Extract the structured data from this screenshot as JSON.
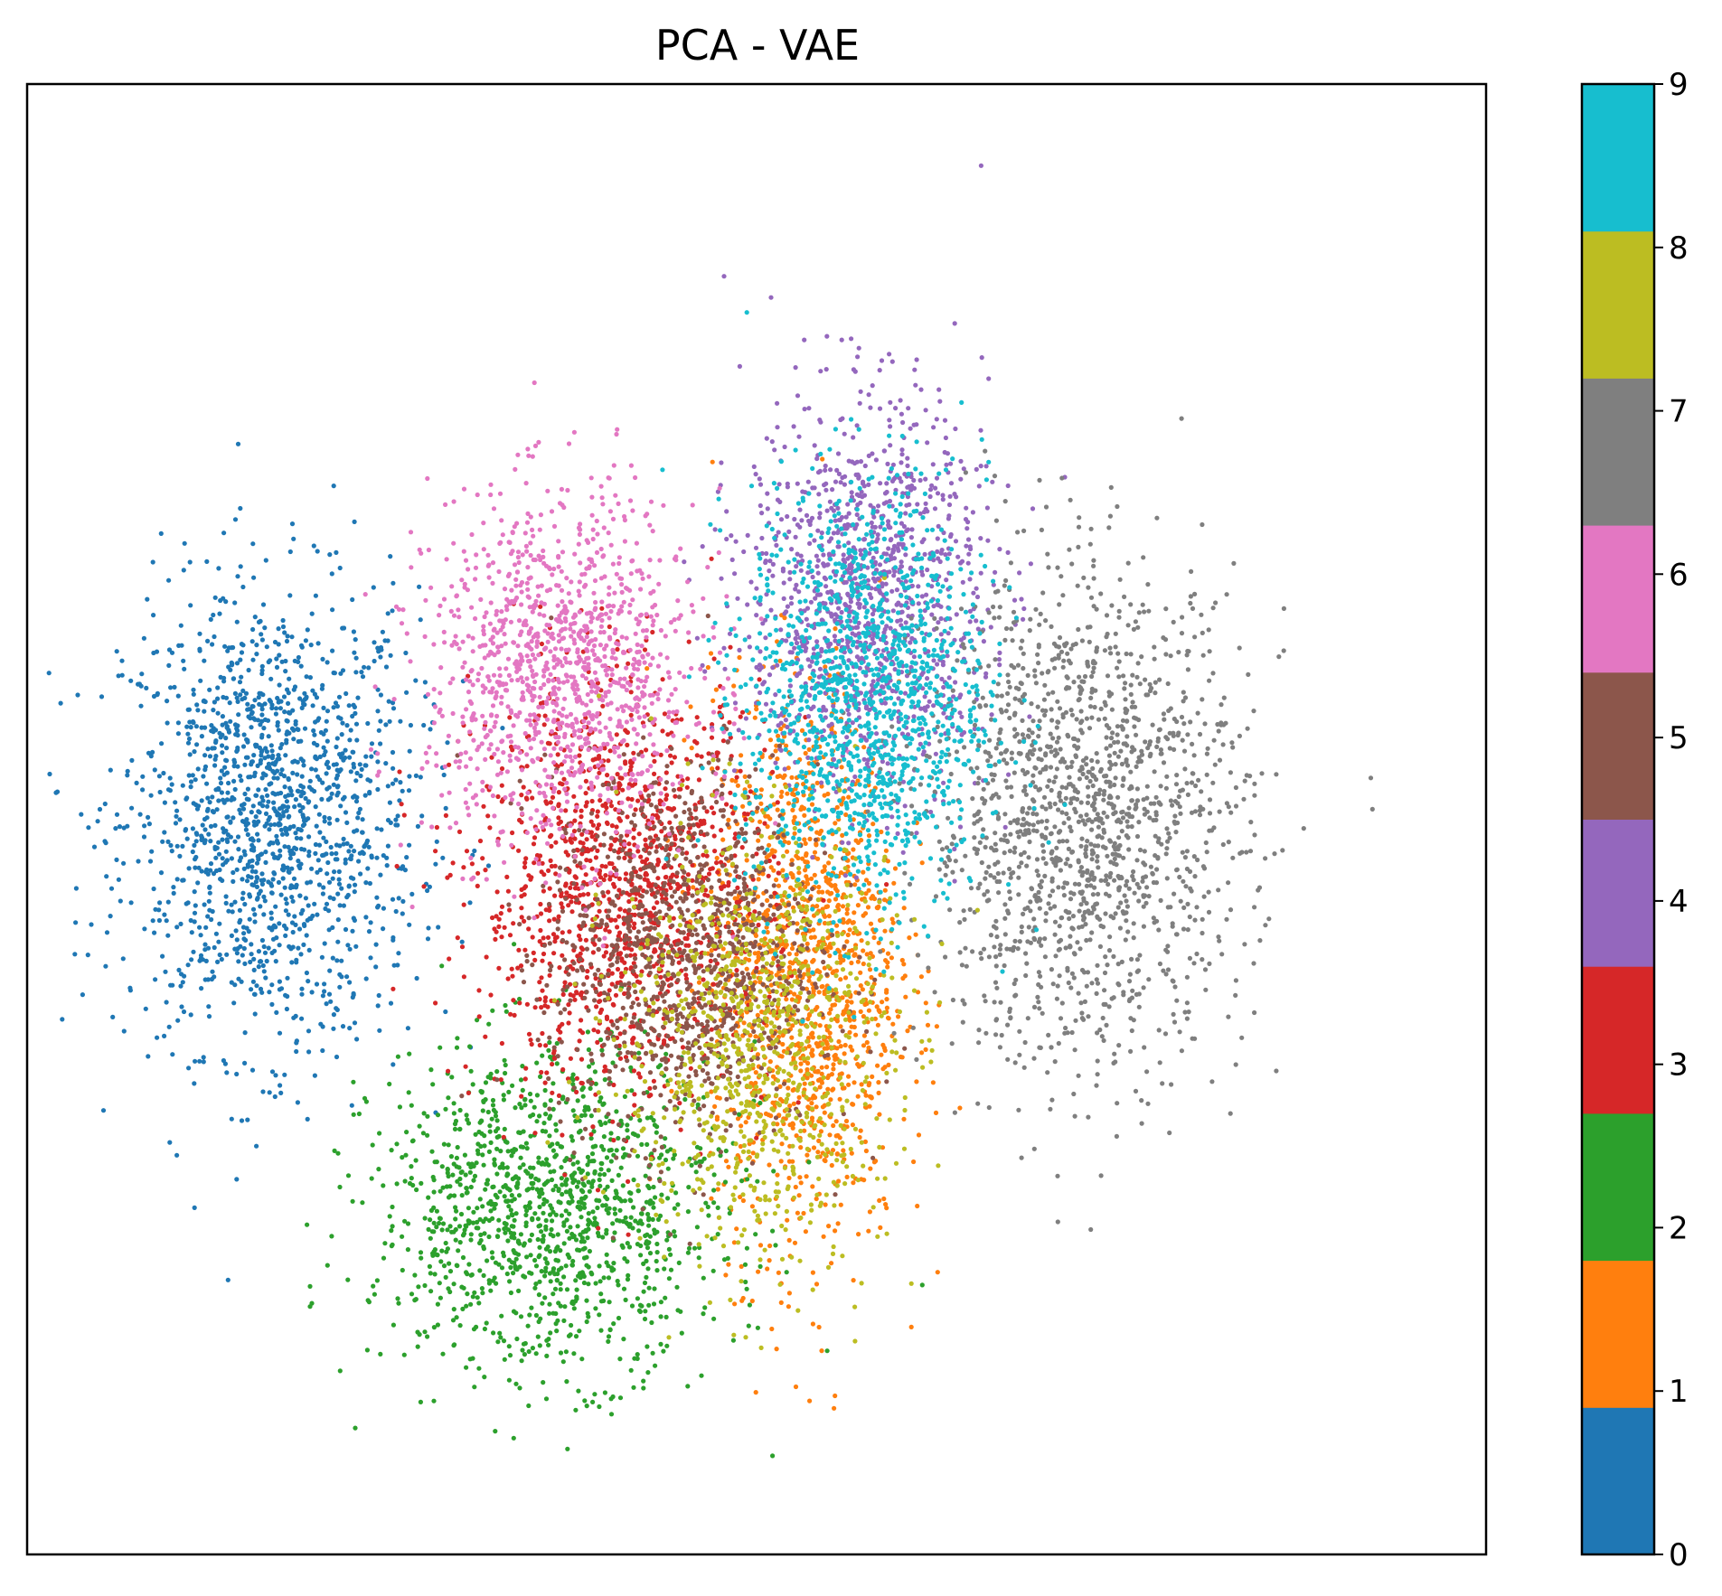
{
  "chart_data": {
    "type": "scatter",
    "title": "PCA - VAE",
    "xlabel": "",
    "ylabel": "",
    "x_ticks_visible": false,
    "y_ticks_visible": false,
    "xlim": [
      -3.0,
      3.0
    ],
    "ylim": [
      -3.0,
      3.0
    ],
    "colorbar": {
      "ticks": [
        "0",
        "1",
        "2",
        "3",
        "4",
        "5",
        "6",
        "7",
        "8",
        "9"
      ],
      "colormap": "tab10"
    },
    "clusters": [
      {
        "label": "0",
        "color": "#1f77b4",
        "center": [
          -2.0,
          0.0
        ],
        "spread": [
          0.55,
          0.85
        ],
        "n": 1500
      },
      {
        "label": "1",
        "color": "#ff7f0e",
        "center": [
          0.2,
          -0.6
        ],
        "spread": [
          0.35,
          1.05
        ],
        "n": 1300
      },
      {
        "label": "2",
        "color": "#2ca02c",
        "center": [
          -0.85,
          -1.6
        ],
        "spread": [
          0.65,
          0.6
        ],
        "n": 1300
      },
      {
        "label": "3",
        "color": "#d62728",
        "center": [
          -0.55,
          -0.3
        ],
        "spread": [
          0.55,
          0.75
        ],
        "n": 1300
      },
      {
        "label": "4",
        "color": "#9467bd",
        "center": [
          0.45,
          0.9
        ],
        "spread": [
          0.45,
          0.75
        ],
        "n": 1200
      },
      {
        "label": "5",
        "color": "#8c564b",
        "center": [
          -0.3,
          -0.55
        ],
        "spread": [
          0.5,
          0.7
        ],
        "n": 1100
      },
      {
        "label": "6",
        "color": "#e377c2",
        "center": [
          -0.8,
          0.6
        ],
        "spread": [
          0.5,
          0.65
        ],
        "n": 1200
      },
      {
        "label": "7",
        "color": "#7f7f7f",
        "center": [
          1.35,
          0.0
        ],
        "spread": [
          0.6,
          0.9
        ],
        "n": 1600
      },
      {
        "label": "8",
        "color": "#bcbd22",
        "center": [
          0.0,
          -0.9
        ],
        "spread": [
          0.5,
          0.8
        ],
        "n": 900
      },
      {
        "label": "9",
        "color": "#17becf",
        "center": [
          0.45,
          0.5
        ],
        "spread": [
          0.45,
          0.8
        ],
        "n": 1300
      }
    ]
  }
}
